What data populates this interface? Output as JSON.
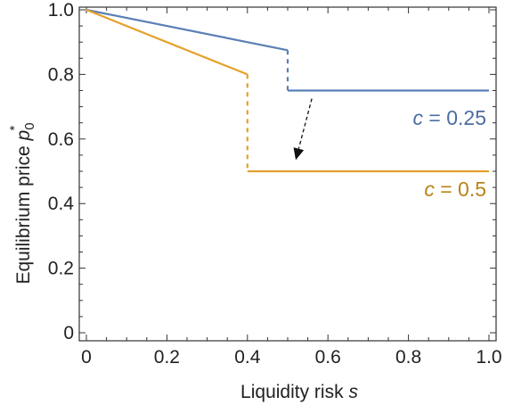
{
  "chart_data": {
    "type": "line",
    "xlabel": "Liquidity risk",
    "xlabel_var": "s",
    "ylabel": "Equilibrium price",
    "ylabel_var": "p",
    "ylabel_sub": "0",
    "ylabel_sup": "*",
    "xlim": [
      0,
      1
    ],
    "ylim": [
      0,
      1
    ],
    "x_ticks": [
      "0",
      "0.2",
      "0.4",
      "0.6",
      "0.8",
      "1.0"
    ],
    "x_tick_values": [
      0,
      0.2,
      0.4,
      0.6,
      0.8,
      1.0
    ],
    "y_ticks": [
      "0",
      "0.2",
      "0.4",
      "0.6",
      "0.8",
      "1.0"
    ],
    "y_tick_values": [
      0,
      0.2,
      0.4,
      0.6,
      0.8,
      1.0
    ],
    "series": [
      {
        "label_var": "c",
        "label_value": "= 0.25",
        "color": "#5b7fb5",
        "label_color": "#4a6ea3",
        "segments": [
          {
            "points": [
              [
                0,
                1.0
              ],
              [
                0.5,
                0.875
              ]
            ],
            "style": "solid"
          },
          {
            "points": [
              [
                0.5,
                0.875
              ],
              [
                0.5,
                0.75
              ]
            ],
            "style": "dashed"
          },
          {
            "points": [
              [
                0.5,
                0.75
              ],
              [
                1.0,
                0.75
              ]
            ],
            "style": "solid"
          }
        ]
      },
      {
        "label_var": "c",
        "label_value": "= 0.5",
        "color": "#e5a12c",
        "label_color": "#b88318",
        "segments": [
          {
            "points": [
              [
                0,
                1.0
              ],
              [
                0.4,
                0.8
              ]
            ],
            "style": "solid"
          },
          {
            "points": [
              [
                0.4,
                0.8
              ],
              [
                0.4,
                0.5
              ]
            ],
            "style": "dashed"
          },
          {
            "points": [
              [
                0.4,
                0.5
              ],
              [
                1.0,
                0.5
              ]
            ],
            "style": "solid"
          }
        ]
      }
    ],
    "annotations": [
      {
        "type": "dashed-arrow",
        "from": [
          0.56,
          0.725
        ],
        "to": [
          0.52,
          0.535
        ],
        "color": "#111111"
      }
    ],
    "grid": false
  }
}
